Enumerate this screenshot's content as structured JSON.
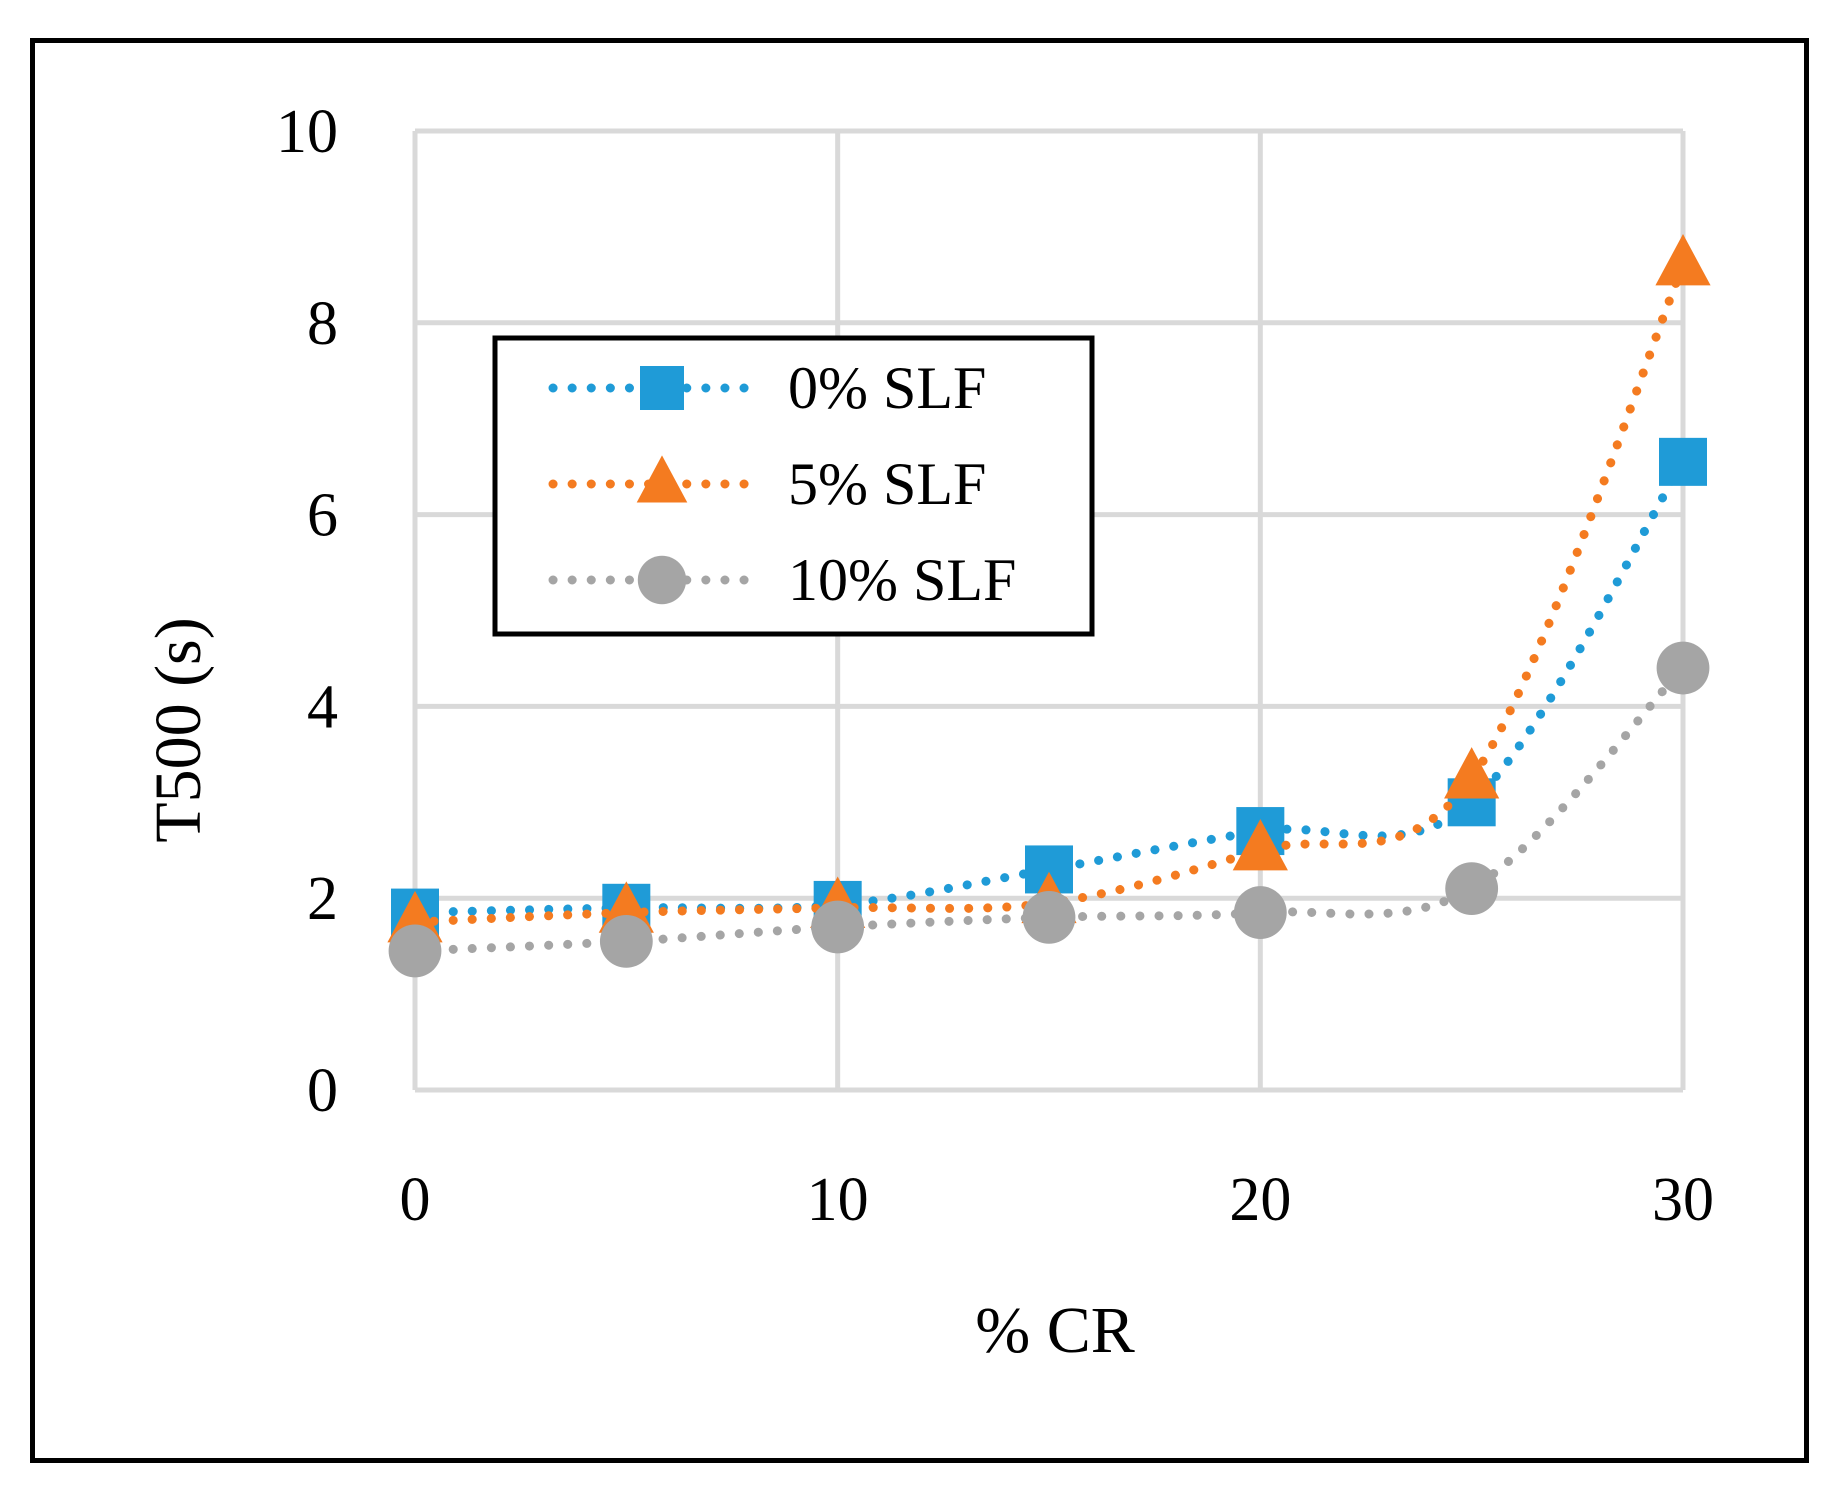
{
  "chart_data": {
    "type": "line",
    "title": "",
    "xlabel": "% CR",
    "ylabel": "T500 (s)",
    "xlim": [
      0,
      30
    ],
    "ylim": [
      0,
      10
    ],
    "xticks": [
      "0",
      "10",
      "20",
      "30"
    ],
    "yticks": [
      "0",
      "2",
      "4",
      "6",
      "8",
      "10"
    ],
    "grid": true,
    "legend_position": "upper-left",
    "x": [
      0,
      5,
      10,
      15,
      20,
      25,
      30
    ],
    "series": [
      {
        "name": "0% SLF",
        "values": [
          1.85,
          1.9,
          1.93,
          2.3,
          2.7,
          3.0,
          6.55
        ],
        "color": "#1f9bd7",
        "marker": "square"
      },
      {
        "name": "5% SLF",
        "values": [
          1.75,
          1.85,
          1.9,
          1.95,
          2.5,
          3.25,
          8.6
        ],
        "color": "#f47b20",
        "marker": "triangle"
      },
      {
        "name": "10% SLF",
        "values": [
          1.45,
          1.55,
          1.7,
          1.8,
          1.85,
          2.1,
          4.4
        ],
        "color": "#a5a5a5",
        "marker": "circle"
      }
    ]
  }
}
